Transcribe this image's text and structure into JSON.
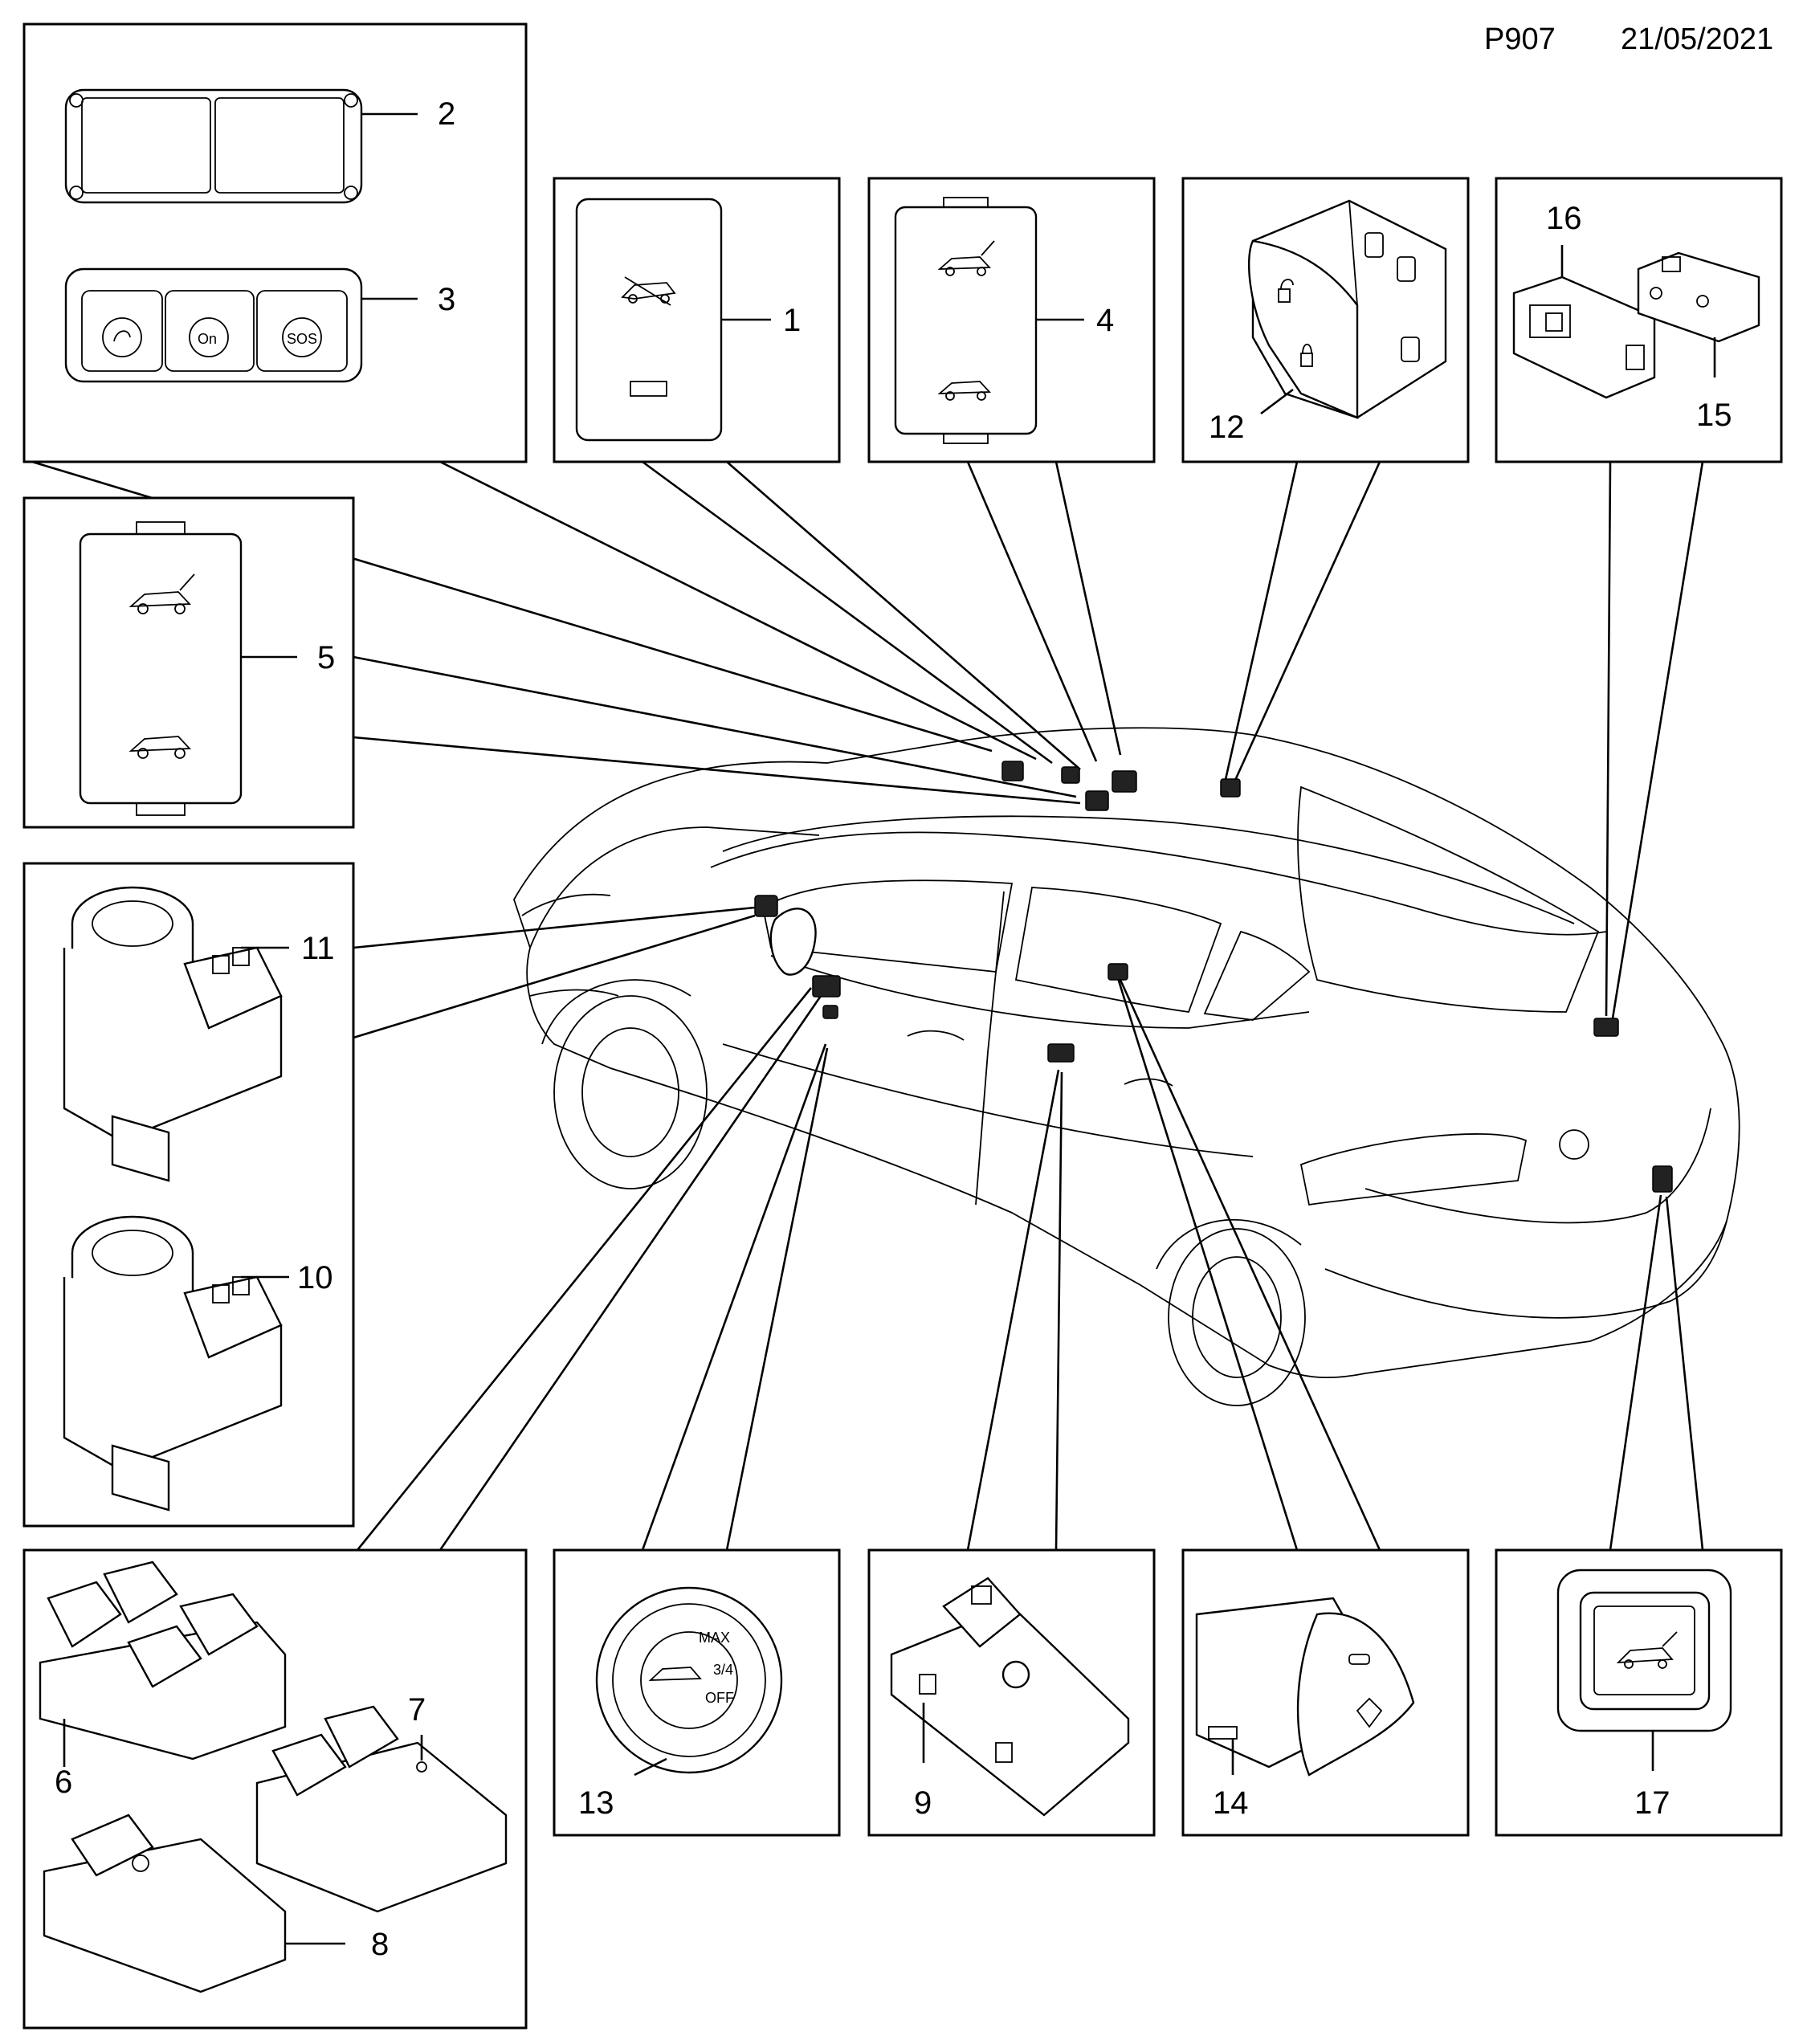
{
  "header": {
    "page_code": "P907",
    "date": "21/05/2021"
  },
  "callouts": [
    {
      "id": "1",
      "text": "1"
    },
    {
      "id": "2",
      "text": "2"
    },
    {
      "id": "3",
      "text": "3"
    },
    {
      "id": "4",
      "text": "4"
    },
    {
      "id": "5",
      "text": "5"
    },
    {
      "id": "6",
      "text": "6"
    },
    {
      "id": "7",
      "text": "7"
    },
    {
      "id": "8",
      "text": "8"
    },
    {
      "id": "9",
      "text": "9"
    },
    {
      "id": "10",
      "text": "10"
    },
    {
      "id": "11",
      "text": "11"
    },
    {
      "id": "12",
      "text": "12"
    },
    {
      "id": "13",
      "text": "13"
    },
    {
      "id": "14",
      "text": "14"
    },
    {
      "id": "15",
      "text": "15"
    },
    {
      "id": "16",
      "text": "16"
    },
    {
      "id": "17",
      "text": "17"
    }
  ],
  "part_markings": {
    "onstar": "On",
    "sos": "SOS",
    "heater_max": "MAX",
    "heater_three_quarter": "3/4",
    "heater_off": "OFF"
  },
  "icons": {
    "panel_1": "convertible-roof-icon",
    "panel_4": "tailgate-open-close-icon",
    "panel_5": "tailgate-open-close-icon",
    "panel_12": "door-lock-unlock-icon",
    "panel_14": "seat-heater-icon",
    "panel_17": "tailgate-open-icon"
  }
}
